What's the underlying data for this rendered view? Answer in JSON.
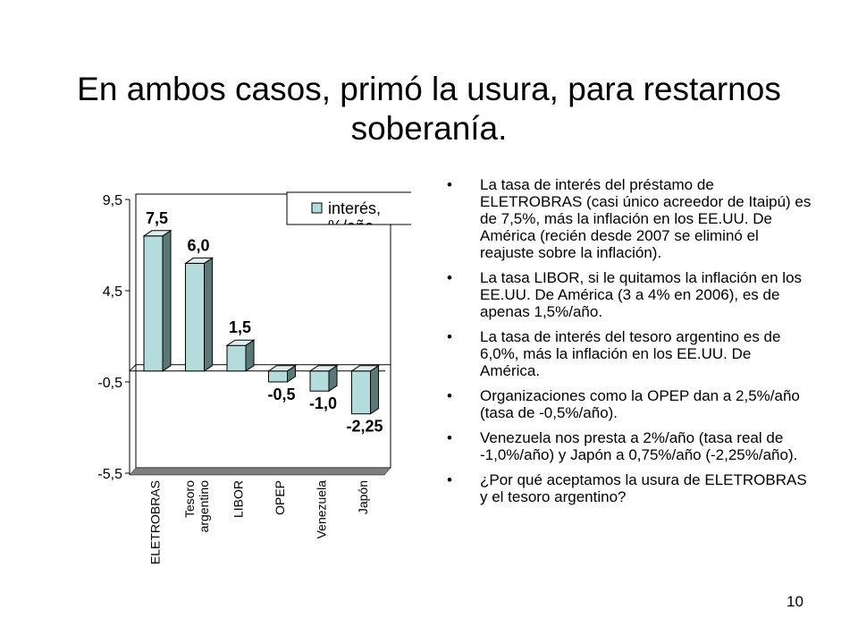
{
  "slide": {
    "title": "En ambos casos, primó la usura, para restarnos soberanía.",
    "page_number": "10",
    "bullet_glyph": "•",
    "bullets": [
      "La tasa de interés del préstamo de ELETROBRAS (casi único acreedor de Itaipú) es de 7,5%, más la inflación en los EE.UU. De América (recién desde 2007 se eliminó el reajuste sobre la inflación).",
      "La tasa LIBOR, si le quitamos la inflación en los EE.UU. De América (3 a 4% en 2006), es de apenas 1,5%/año.",
      "La tasa de interés del tesoro argentino es de 6,0%, más la inflación en los EE.UU. De América.",
      "Organizaciones como la OPEP dan a 2,5%/año (tasa de -0,5%/año).",
      "Venezuela nos presta a 2%/año (tasa real de -1,0%/año) y Japón a 0,75%/año (-2,25%/año).",
      "¿Por qué aceptamos la usura de ELETROBRAS y el tesoro argentino?"
    ]
  },
  "chart_data": {
    "type": "bar",
    "categories": [
      [
        "ELETROBRAS"
      ],
      [
        "Tesoro",
        "argentino"
      ],
      [
        "LIBOR"
      ],
      [
        "OPEP"
      ],
      [
        "Venezuela"
      ],
      [
        "Japón"
      ]
    ],
    "values": [
      7.5,
      6.0,
      1.5,
      -0.5,
      -1.0,
      -2.25
    ],
    "data_labels": [
      "7,5",
      "6,0",
      "1,5",
      "-0,5",
      "-1,0",
      "-2,25"
    ],
    "yticks": [
      9.5,
      4.5,
      -0.5,
      -5.5
    ],
    "ytick_labels": [
      "9,5",
      "4,5",
      "-0,5",
      "-5,5"
    ],
    "ylim": [
      -5.5,
      9.5
    ],
    "legend": {
      "label": "interés,",
      "label_clipped": "%/año",
      "placement": "top-right"
    },
    "bar_color": "#b4dcdc",
    "bar_side_color": "#5a7878",
    "bar_top_color": "#dcf0f0",
    "three_d": true
  }
}
